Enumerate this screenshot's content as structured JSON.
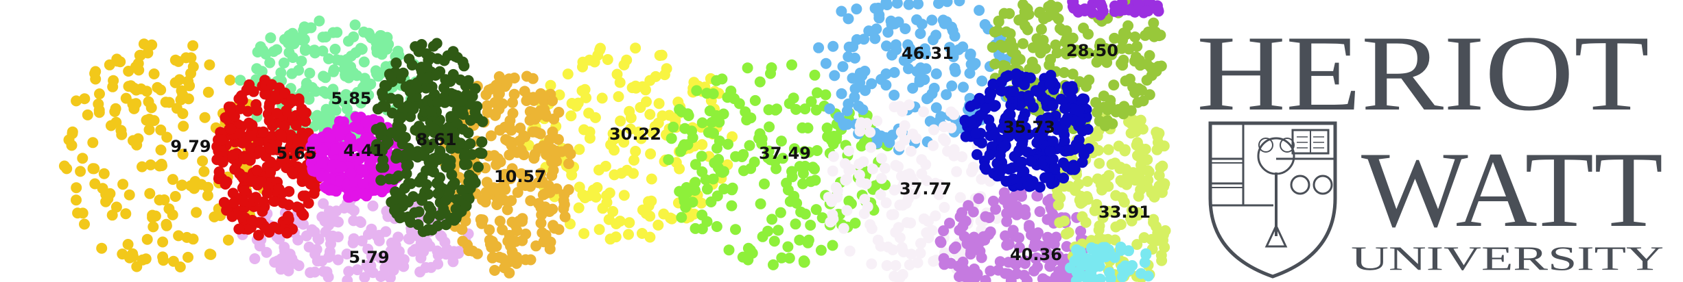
{
  "banner": {
    "cluster_labels": [
      "9.79",
      "5.85",
      "5.65",
      "4.41",
      "8.61",
      "10.57",
      "5.79",
      "30.22",
      "37.49",
      "46.31",
      "28.50",
      "35.73",
      "37.77",
      "33.91",
      "40.36"
    ],
    "cluster_colors": [
      "#f2c81a",
      "#7ef0a0",
      "#e00d0d",
      "#e213e8",
      "#2f5a14",
      "#ecb534",
      "#e6b3f0",
      "#f8f442",
      "#8ef03a",
      "#66b8f0",
      "#98c83a",
      "#0b0bc8",
      "#f7f0f7",
      "#d6f062",
      "#c57ae0"
    ]
  },
  "logo": {
    "line1": "HERIOT",
    "line2": "WATT",
    "line3": "UNIVERSITY",
    "color": "#4a4f57"
  }
}
